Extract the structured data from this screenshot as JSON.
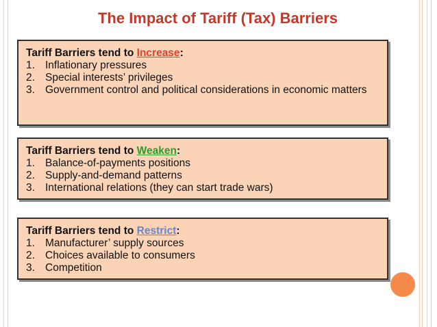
{
  "title": "The Impact of Tariff (Tax) Barriers",
  "colors": {
    "title": "#c0392b",
    "box_fill": "#fbd3b6",
    "increase": "#e0432c",
    "weaken": "#2a9d2a",
    "restrict": "#6a86c8",
    "accent_circle": "#f58a4b"
  },
  "boxes": [
    {
      "prefix": "Tariff Barriers tend to ",
      "keyword": "Increase",
      "suffix": ":",
      "items": [
        {
          "num": "1.",
          "text": "Inflationary pressures"
        },
        {
          "num": "2.",
          "text": "Special interests’ privileges"
        },
        {
          "num": "3.",
          "text": "Government control and political considerations in economic matters"
        }
      ]
    },
    {
      "prefix": "Tariff Barriers tend to ",
      "keyword": "Weaken",
      "suffix": ":",
      "items": [
        {
          "num": "1.",
          "text": "Balance-of-payments positions"
        },
        {
          "num": "2.",
          "text": "Supply-and-demand patterns"
        },
        {
          "num": "3.",
          "text": "International relations (they can start trade wars)"
        }
      ]
    },
    {
      "prefix": "Tariff Barriers tend to ",
      "keyword": "Restrict",
      "suffix": ":",
      "items": [
        {
          "num": "1.",
          "text": "Manufacturer’ supply sources"
        },
        {
          "num": "2.",
          "text": "Choices available to consumers"
        },
        {
          "num": "3.",
          "text": "Competition"
        }
      ]
    }
  ]
}
